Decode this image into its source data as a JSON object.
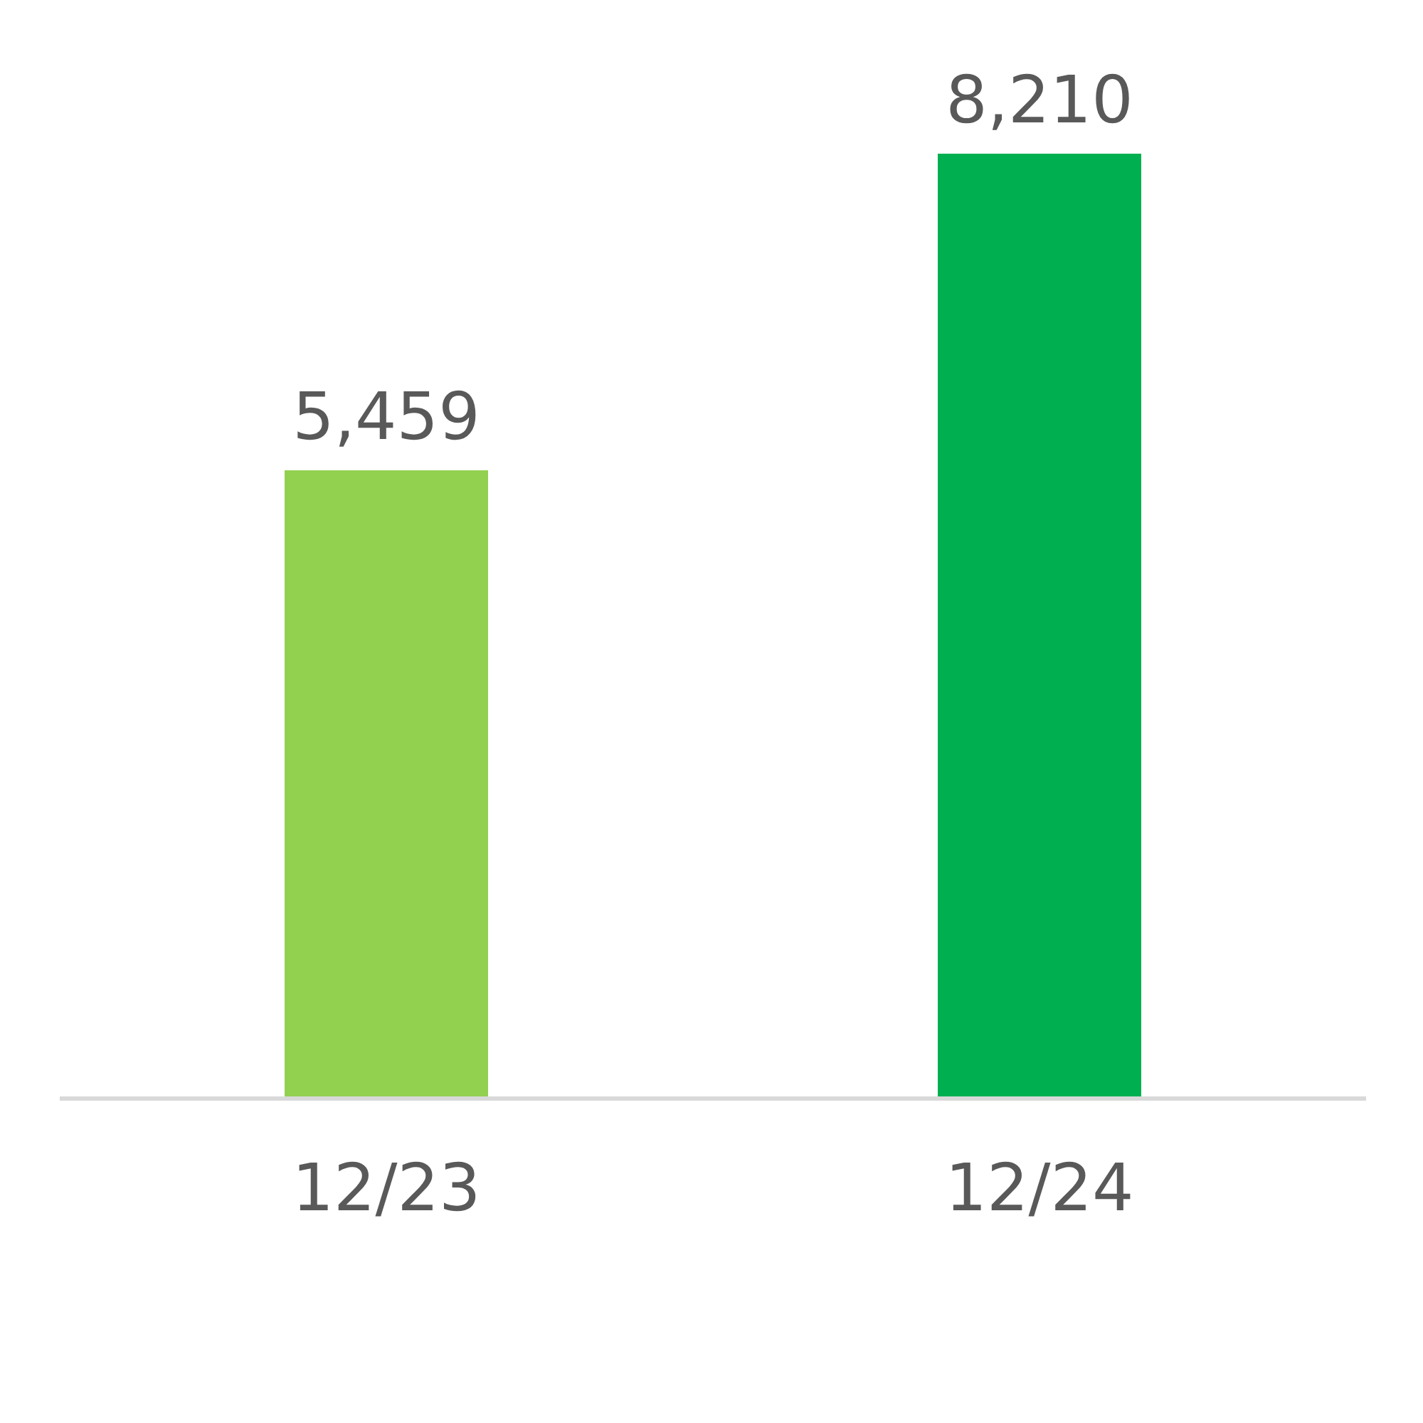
{
  "chart_data": {
    "type": "bar",
    "categories": [
      "12/23",
      "12/24"
    ],
    "values": [
      5459,
      8210
    ],
    "colors": [
      "#92d050",
      "#00b050"
    ],
    "value_labels": [
      "5,459",
      "8,210"
    ]
  }
}
